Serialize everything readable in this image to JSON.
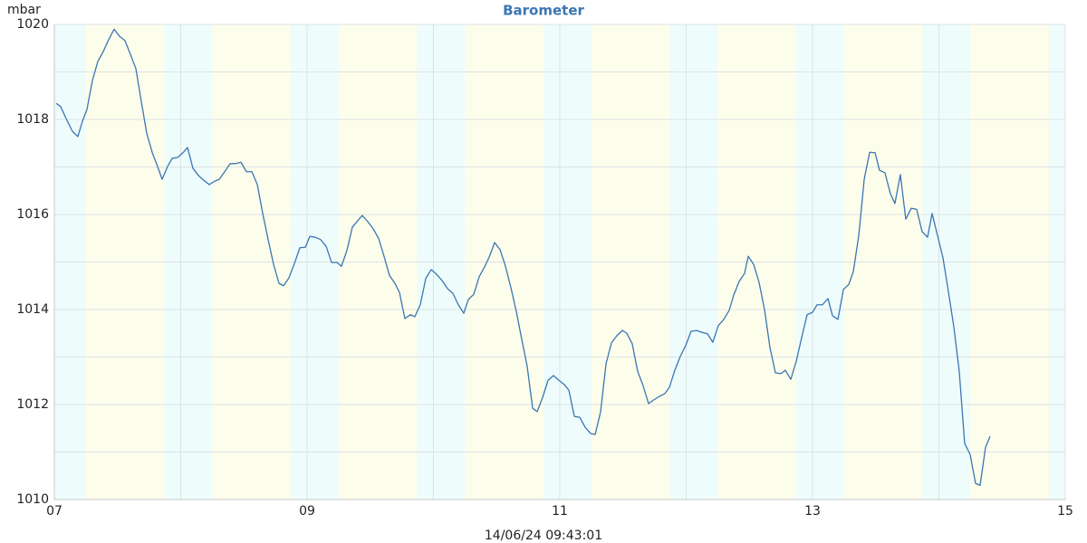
{
  "chart_data": {
    "type": "line",
    "title": "Barometer",
    "y_label": "mbar",
    "footer": "14/06/24 09:43:01",
    "x": [
      7.014,
      7.05,
      7.093,
      7.143,
      7.186,
      7.222,
      7.258,
      7.301,
      7.344,
      7.387,
      7.43,
      7.473,
      7.516,
      7.559,
      7.602,
      7.645,
      7.688,
      7.731,
      7.774,
      7.817,
      7.853,
      7.896,
      7.932,
      7.975,
      8.018,
      8.054,
      8.097,
      8.14,
      8.183,
      8.226,
      8.269,
      8.305,
      8.348,
      8.391,
      8.434,
      8.477,
      8.52,
      8.563,
      8.606,
      8.649,
      8.692,
      8.735,
      8.778,
      8.814,
      8.857,
      8.9,
      8.943,
      8.986,
      9.022,
      9.065,
      9.108,
      9.151,
      9.194,
      9.237,
      9.272,
      9.315,
      9.358,
      9.401,
      9.437,
      9.48,
      9.523,
      9.566,
      9.609,
      9.652,
      9.695,
      9.731,
      9.774,
      9.817,
      9.853,
      9.896,
      9.939,
      9.982,
      10.025,
      10.068,
      10.111,
      10.154,
      10.197,
      10.24,
      10.276,
      10.319,
      10.362,
      10.405,
      10.441,
      10.484,
      10.527,
      10.57,
      10.613,
      10.656,
      10.699,
      10.742,
      10.785,
      10.821,
      10.864,
      10.907,
      10.95,
      10.993,
      11.036,
      11.072,
      11.115,
      11.158,
      11.201,
      11.244,
      11.28,
      11.323,
      11.366,
      11.409,
      11.452,
      11.495,
      11.53,
      11.573,
      11.616,
      11.659,
      11.702,
      11.745,
      11.788,
      11.831,
      11.867,
      11.91,
      11.953,
      11.996,
      12.039,
      12.082,
      12.125,
      12.168,
      12.211,
      12.254,
      12.297,
      12.34,
      12.376,
      12.419,
      12.462,
      12.491,
      12.534,
      12.577,
      12.62,
      12.663,
      12.706,
      12.749,
      12.785,
      12.828,
      12.871,
      12.914,
      12.957,
      13.0,
      13.036,
      13.079,
      13.122,
      13.158,
      13.201,
      13.244,
      13.287,
      13.323,
      13.366,
      13.409,
      13.452,
      13.495,
      13.53,
      13.573,
      13.616,
      13.652,
      13.695,
      13.738,
      13.781,
      13.824,
      13.867,
      13.91,
      13.946,
      13.989,
      14.032,
      14.075,
      14.118,
      14.161,
      14.204,
      14.247,
      14.29,
      14.326,
      14.369,
      14.405
    ],
    "series": [
      {
        "color": "#3b76b2",
        "values": [
          1018.34,
          1018.27,
          1018.02,
          1017.75,
          1017.64,
          1017.96,
          1018.21,
          1018.82,
          1019.22,
          1019.43,
          1019.68,
          1019.9,
          1019.75,
          1019.66,
          1019.37,
          1019.07,
          1018.38,
          1017.71,
          1017.31,
          1017.01,
          1016.74,
          1017.01,
          1017.18,
          1017.2,
          1017.3,
          1017.41,
          1016.97,
          1016.82,
          1016.72,
          1016.63,
          1016.7,
          1016.74,
          1016.9,
          1017.07,
          1017.07,
          1017.1,
          1016.9,
          1016.9,
          1016.63,
          1016.02,
          1015.47,
          1014.95,
          1014.55,
          1014.5,
          1014.67,
          1014.97,
          1015.3,
          1015.31,
          1015.54,
          1015.52,
          1015.47,
          1015.33,
          1014.99,
          1014.99,
          1014.91,
          1015.24,
          1015.73,
          1015.87,
          1015.98,
          1015.85,
          1015.7,
          1015.5,
          1015.12,
          1014.72,
          1014.55,
          1014.36,
          1013.81,
          1013.89,
          1013.85,
          1014.1,
          1014.65,
          1014.84,
          1014.74,
          1014.61,
          1014.44,
          1014.34,
          1014.1,
          1013.92,
          1014.21,
          1014.32,
          1014.69,
          1014.9,
          1015.1,
          1015.41,
          1015.26,
          1014.91,
          1014.46,
          1013.96,
          1013.37,
          1012.8,
          1011.92,
          1011.85,
          1012.15,
          1012.51,
          1012.61,
          1012.51,
          1012.42,
          1012.3,
          1011.75,
          1011.73,
          1011.52,
          1011.39,
          1011.37,
          1011.85,
          1012.86,
          1013.3,
          1013.45,
          1013.56,
          1013.5,
          1013.28,
          1012.7,
          1012.4,
          1012.02,
          1012.1,
          1012.17,
          1012.23,
          1012.36,
          1012.72,
          1013.01,
          1013.24,
          1013.54,
          1013.56,
          1013.52,
          1013.49,
          1013.31,
          1013.66,
          1013.79,
          1013.98,
          1014.3,
          1014.59,
          1014.76,
          1015.12,
          1014.95,
          1014.57,
          1014.0,
          1013.2,
          1012.67,
          1012.65,
          1012.72,
          1012.53,
          1012.91,
          1013.41,
          1013.89,
          1013.94,
          1014.1,
          1014.1,
          1014.23,
          1013.87,
          1013.79,
          1014.42,
          1014.53,
          1014.8,
          1015.56,
          1016.74,
          1017.31,
          1017.3,
          1016.93,
          1016.88,
          1016.44,
          1016.23,
          1016.84,
          1015.9,
          1016.13,
          1016.11,
          1015.64,
          1015.52,
          1016.02,
          1015.56,
          1015.09,
          1014.38,
          1013.64,
          1012.7,
          1011.18,
          1010.95,
          1010.34,
          1010.3,
          1011.1,
          1011.33
        ]
      }
    ],
    "xlim": [
      7,
      15
    ],
    "xticks": [
      {
        "value": 7,
        "label": "07"
      },
      {
        "value": 9,
        "label": "09"
      },
      {
        "value": 11,
        "label": "11"
      },
      {
        "value": 13,
        "label": "13"
      },
      {
        "value": 15,
        "label": "15"
      }
    ],
    "minor_xticks": [
      8,
      10,
      12,
      14
    ],
    "ylim": [
      1010,
      1020
    ],
    "yticks": [
      1010,
      1012,
      1014,
      1016,
      1018,
      1020
    ],
    "minor_yticks": [
      1011,
      1013,
      1015,
      1017,
      1019
    ],
    "grid": true,
    "daylight_spans": [
      [
        7.25,
        7.87
      ],
      [
        8.25,
        8.87
      ],
      [
        9.25,
        9.87
      ],
      [
        10.25,
        10.87
      ],
      [
        11.25,
        11.87
      ],
      [
        12.25,
        12.87
      ],
      [
        13.25,
        13.87
      ],
      [
        14.25,
        14.87
      ]
    ],
    "daylight_color": "#fdfdec",
    "night_color": "#eefcfc"
  }
}
